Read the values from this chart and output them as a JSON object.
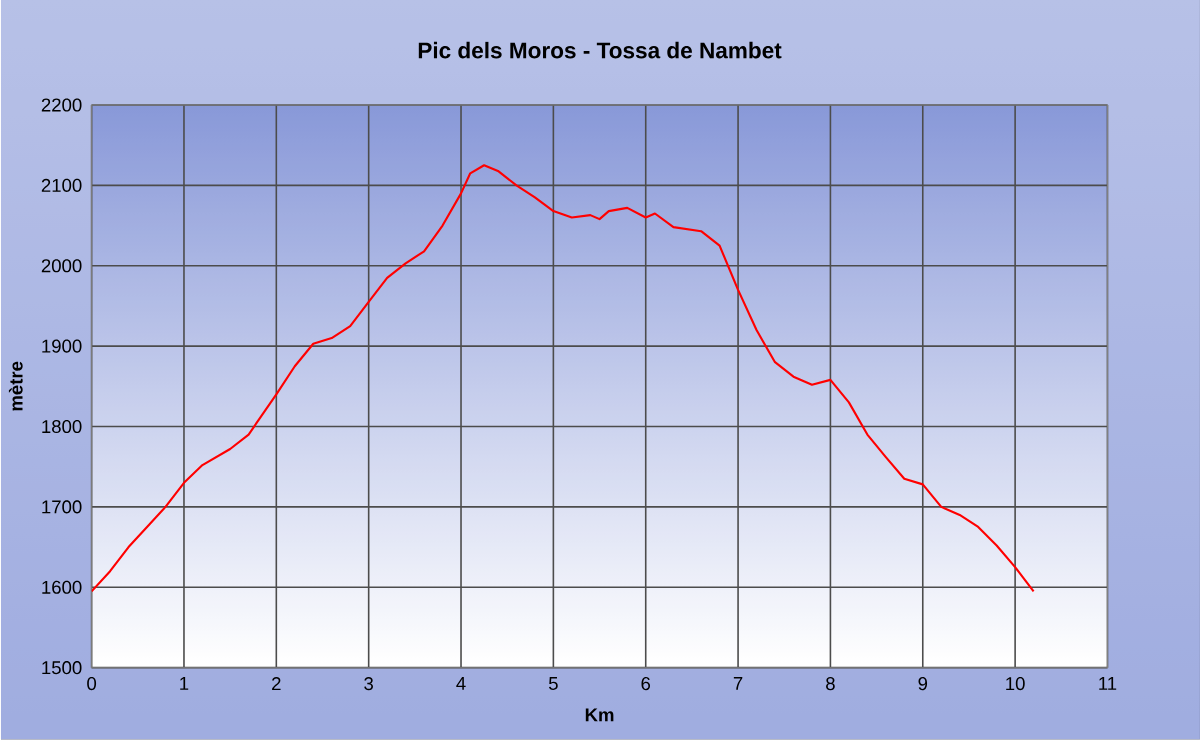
{
  "chart_data": {
    "type": "line",
    "title": "Pic dels Moros - Tossa de Nambet",
    "xlabel": "Km",
    "ylabel": "mètre",
    "x": [
      0,
      0.2,
      0.4,
      0.6,
      0.8,
      1.0,
      1.2,
      1.5,
      1.7,
      2.0,
      2.2,
      2.4,
      2.6,
      2.8,
      3.0,
      3.2,
      3.4,
      3.6,
      3.8,
      4.0,
      4.1,
      4.25,
      4.4,
      4.6,
      4.8,
      5.0,
      5.2,
      5.4,
      5.5,
      5.6,
      5.8,
      6.0,
      6.1,
      6.3,
      6.6,
      6.8,
      7.0,
      7.2,
      7.4,
      7.6,
      7.8,
      8.0,
      8.2,
      8.4,
      8.6,
      8.8,
      9.0,
      9.2,
      9.4,
      9.6,
      9.8,
      10.0,
      10.2
    ],
    "values": [
      1595,
      1620,
      1650,
      1675,
      1700,
      1730,
      1752,
      1772,
      1790,
      1840,
      1875,
      1903,
      1910,
      1925,
      1955,
      1985,
      2003,
      2018,
      2050,
      2090,
      2115,
      2125,
      2118,
      2100,
      2085,
      2068,
      2060,
      2063,
      2058,
      2068,
      2072,
      2060,
      2065,
      2048,
      2043,
      2025,
      1970,
      1920,
      1880,
      1862,
      1852,
      1858,
      1830,
      1790,
      1762,
      1735,
      1728,
      1700,
      1690,
      1675,
      1652,
      1625,
      1595
    ],
    "color": "#ff0000",
    "xlim": [
      0,
      11
    ],
    "ylim": [
      1500,
      2200
    ],
    "xticks": [
      0,
      1,
      2,
      3,
      4,
      5,
      6,
      7,
      8,
      9,
      10,
      11
    ],
    "yticks": [
      1500,
      1600,
      1700,
      1800,
      1900,
      2000,
      2100,
      2200
    ],
    "grid": true,
    "marker": "none",
    "line_style": "solid"
  }
}
